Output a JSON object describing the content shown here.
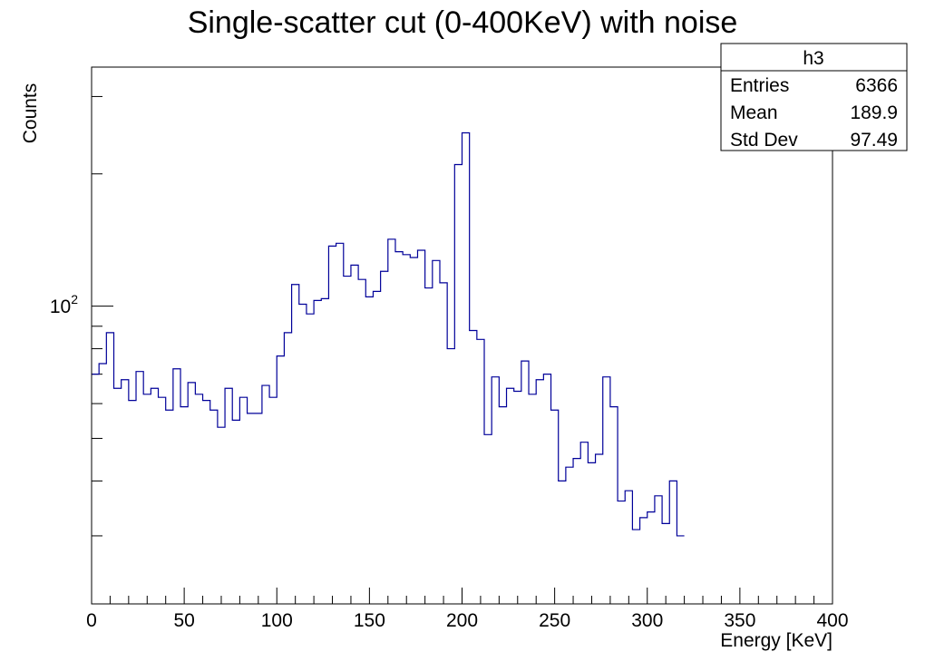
{
  "chart_data": {
    "type": "histogram",
    "title": "Single-scatter cut (0-400KeV) with noise",
    "xlabel": "Energy [KeV]",
    "ylabel": "Counts",
    "xlim": [
      0,
      400
    ],
    "ylim": [
      21,
      350
    ],
    "yscale": "log",
    "grid": false,
    "bin_width": 4,
    "x_ticks": [
      "0",
      "50",
      "100",
      "150",
      "200",
      "250",
      "300",
      "350",
      "400"
    ],
    "y_tick_label": {
      "base": "10",
      "exponent": "2",
      "value": 100
    },
    "series": [
      {
        "name": "h3",
        "color": "#000099",
        "values": [
          70,
          74,
          87,
          65,
          68,
          61,
          71,
          63,
          65,
          62,
          58,
          72,
          59,
          67,
          63,
          61,
          58,
          53,
          65,
          55,
          62,
          57,
          57,
          66,
          62,
          77,
          87,
          112,
          101,
          96,
          103,
          104,
          137,
          139,
          117,
          124,
          115,
          105,
          108,
          120,
          142,
          133,
          131,
          129,
          134,
          110,
          127,
          113,
          80,
          210,
          248,
          88,
          84,
          51,
          69,
          59,
          65,
          64,
          75,
          63,
          68,
          70,
          58,
          40,
          43,
          45,
          49,
          44,
          46,
          69,
          59,
          36,
          38,
          31,
          33,
          34,
          37,
          32,
          40,
          30
        ]
      }
    ],
    "stats_box": {
      "title": "h3",
      "rows": [
        {
          "label": "Entries",
          "value": "6366"
        },
        {
          "label": "Mean",
          "value": "189.9"
        },
        {
          "label": "Std Dev",
          "value": "97.49"
        }
      ]
    }
  }
}
